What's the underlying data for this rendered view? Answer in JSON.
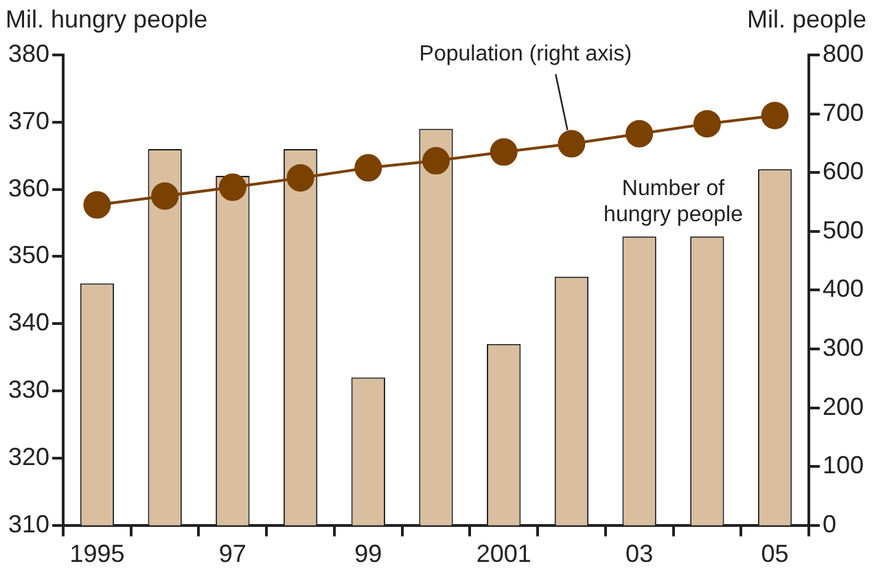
{
  "chart_data": {
    "type": "bar",
    "ylabel": "Mil. hungry people",
    "y2label": "Mil. people",
    "categories": [
      "1995",
      null,
      "97",
      null,
      "99",
      null,
      "2001",
      null,
      "03",
      null,
      "05"
    ],
    "series": [
      {
        "name": "Number of hungry people",
        "color": "#d9bfa0",
        "values": [
          346,
          366,
          362,
          366,
          332,
          369,
          337,
          347,
          353,
          353,
          363
        ]
      },
      {
        "name": "Population (right axis)",
        "type": "line",
        "axis": "y2",
        "color": "#7a4100",
        "marker": "circle",
        "values": [
          545,
          560,
          575,
          591,
          608,
          620,
          635,
          649,
          666,
          683,
          697
        ]
      }
    ],
    "ylim": [
      310,
      380
    ],
    "yticks": [
      310,
      320,
      330,
      340,
      350,
      360,
      370,
      380
    ],
    "y2lim": [
      0,
      800
    ],
    "y2ticks": [
      0,
      100,
      200,
      300,
      400,
      500,
      600,
      700,
      800
    ],
    "grid": false,
    "legend": false
  }
}
